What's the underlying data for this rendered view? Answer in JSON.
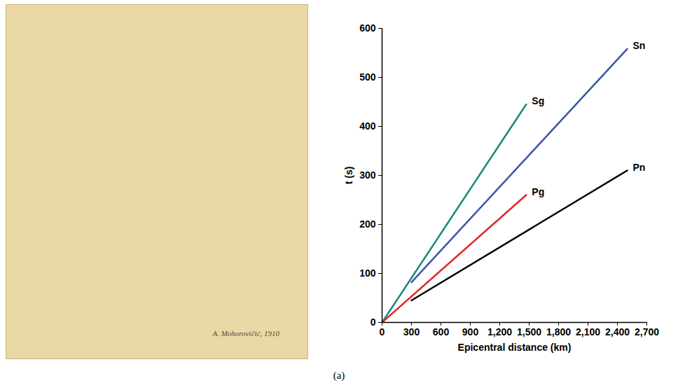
{
  "chart_data": {
    "type": "line",
    "x_label": "Epicentral distance (km)",
    "y_label": "t (s)",
    "xlim": [
      0,
      2700
    ],
    "xticks": [
      0,
      300,
      600,
      900,
      1200,
      1500,
      1800,
      2100,
      2400,
      2700
    ],
    "ylim": [
      0,
      600
    ],
    "yticks": [
      0,
      100,
      200,
      300,
      400,
      500,
      600
    ],
    "series": [
      {
        "name": "Sg",
        "color": "#17877d",
        "x": [
          0,
          1470
        ],
        "values": [
          0,
          445
        ]
      },
      {
        "name": "Sn",
        "color": "#3b55a5",
        "x": [
          300,
          2500
        ],
        "values": [
          82,
          558
        ]
      },
      {
        "name": "Pg",
        "color": "#e3262b",
        "x": [
          0,
          1470
        ],
        "values": [
          0,
          260
        ]
      },
      {
        "name": "Pn",
        "color": "#000000",
        "x": [
          300,
          2500
        ],
        "values": [
          45,
          310
        ]
      }
    ]
  },
  "scan": {
    "signature": "A. Mohorovičić, 1910"
  },
  "caption": "(a)"
}
